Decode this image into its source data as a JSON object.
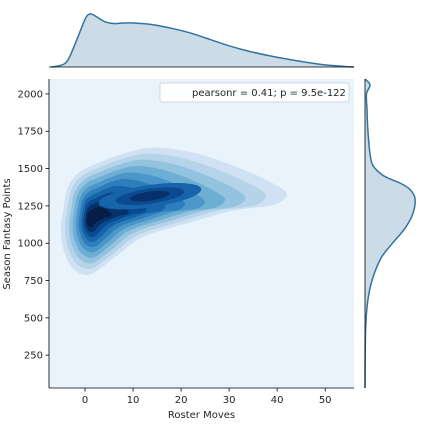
{
  "chart_data": {
    "type": "kde-joint",
    "xlabel": "Roster Moves",
    "ylabel": "Season Fantasy Points",
    "xlim": [
      -7.5,
      56
    ],
    "ylim": [
      30,
      2100
    ],
    "x_ticks": [
      0,
      10,
      20,
      30,
      40,
      50
    ],
    "y_ticks": [
      250,
      500,
      750,
      1000,
      1250,
      1500,
      1750,
      2000
    ],
    "annotation": "pearsonr = 0.41; p = 9.5e-122",
    "legend_placement": "top-right",
    "grid": false,
    "fill_color": "#e9f3fc",
    "contour_color": "#08306b",
    "marginal_color": "#3274a1",
    "density_center": {
      "x": 1,
      "y": 1160
    },
    "density_secondary": {
      "x": 12,
      "y": 1320
    },
    "marginal_x": {
      "x": [
        -7,
        -4,
        -2,
        0,
        1,
        2,
        4,
        6,
        8,
        10,
        14,
        18,
        22,
        26,
        30,
        34,
        38,
        42,
        46,
        50,
        54,
        56
      ],
      "density": [
        0.0,
        0.08,
        0.45,
        0.9,
        1.0,
        0.97,
        0.86,
        0.82,
        0.83,
        0.83,
        0.8,
        0.73,
        0.64,
        0.52,
        0.4,
        0.3,
        0.22,
        0.15,
        0.09,
        0.04,
        0.01,
        0.0
      ]
    },
    "marginal_y": {
      "y": [
        30,
        400,
        600,
        750,
        900,
        1000,
        1100,
        1200,
        1300,
        1360,
        1400,
        1450,
        1520,
        1600,
        1700,
        1800,
        1900,
        2000,
        2060,
        2100
      ],
      "density": [
        0.0,
        0.01,
        0.05,
        0.14,
        0.32,
        0.55,
        0.8,
        0.96,
        1.0,
        0.9,
        0.72,
        0.38,
        0.16,
        0.1,
        0.07,
        0.05,
        0.04,
        0.03,
        0.1,
        0.0
      ]
    }
  }
}
